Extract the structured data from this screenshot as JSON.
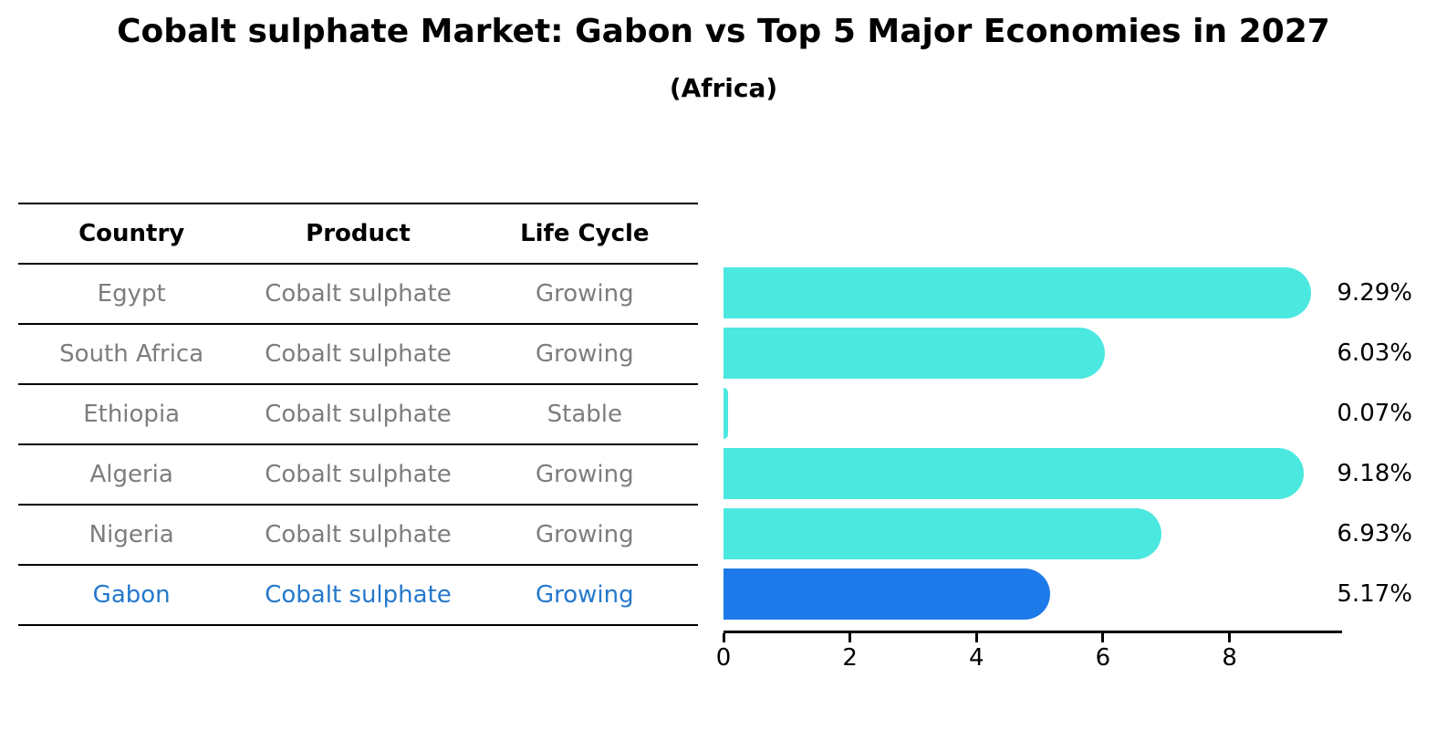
{
  "chart_data": {
    "type": "bar",
    "orientation": "horizontal",
    "title": "Cobalt sulphate Market: Gabon vs Top 5 Major Economies in 2027",
    "subtitle": "(Africa)",
    "categories": [
      "Egypt",
      "South Africa",
      "Ethiopia",
      "Algeria",
      "Nigeria",
      "Gabon"
    ],
    "values": [
      9.29,
      6.03,
      0.07,
      9.18,
      6.93,
      5.17
    ],
    "value_labels": [
      "9.29%",
      "6.03%",
      "0.07%",
      "9.18%",
      "6.93%",
      "5.17%"
    ],
    "x_ticks": [
      "0",
      "2",
      "4",
      "6",
      "8"
    ],
    "xlim": [
      0,
      9.78
    ],
    "grid": false,
    "legend": false,
    "bar_color": "#4BE8E0",
    "highlight_color": "#1E7AE8",
    "highlight_index": 5,
    "highlight_style": "dotted-border"
  },
  "table": {
    "headers": [
      "Country",
      "Product",
      "Life Cycle"
    ],
    "rows": [
      {
        "country": "Egypt",
        "product": "Cobalt sulphate",
        "life_cycle": "Growing",
        "highlighted": false
      },
      {
        "country": "South Africa",
        "product": "Cobalt sulphate",
        "life_cycle": "Growing",
        "highlighted": false
      },
      {
        "country": "Ethiopia",
        "product": "Cobalt sulphate",
        "life_cycle": "Stable",
        "highlighted": false
      },
      {
        "country": "Algeria",
        "product": "Cobalt sulphate",
        "life_cycle": "Growing",
        "highlighted": false
      },
      {
        "country": "Nigeria",
        "product": "Cobalt sulphate",
        "life_cycle": "Growing",
        "highlighted": false
      },
      {
        "country": "Gabon",
        "product": "Cobalt sulphate",
        "life_cycle": "Growing",
        "highlighted": true
      }
    ]
  },
  "colors": {
    "bar": "#4BE8E0",
    "highlight_bar": "#1E7AE8",
    "highlight_text": "#2478cc",
    "body_text": "#7d7d7d",
    "heading_text": "#000000",
    "axis": "#000000"
  }
}
